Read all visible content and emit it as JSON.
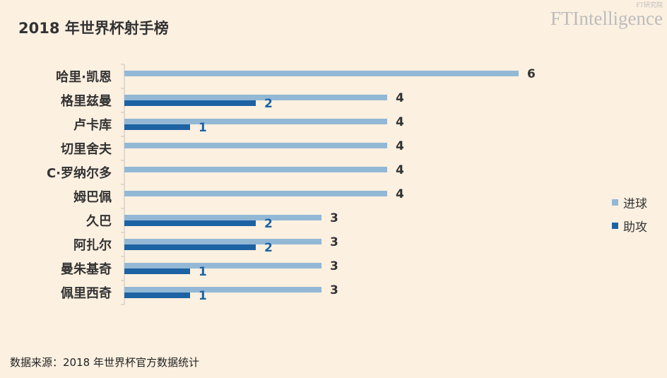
{
  "title": "2018 年世界杯射手榜",
  "brand": {
    "main": "FTIntelligence",
    "sub": "FT研究院"
  },
  "source": "数据来源：2018 年世界杯官方数据统计",
  "colors": {
    "goals": "#93b8d6",
    "assists": "#1d63a4",
    "label_goals": "#333333",
    "label_assists": "#1d63a4"
  },
  "chart_data": {
    "type": "bar",
    "orientation": "horizontal",
    "categories": [
      "哈里·凯恩",
      "格里兹曼",
      "卢卡库",
      "切里舍夫",
      "C·罗纳尔多",
      "姆巴佩",
      "久巴",
      "阿扎尔",
      "曼朱基奇",
      "佩里西奇"
    ],
    "series": [
      {
        "name": "进球",
        "values": [
          6,
          4,
          4,
          4,
          4,
          4,
          3,
          3,
          3,
          3
        ]
      },
      {
        "name": "助攻",
        "values": [
          null,
          2,
          1,
          null,
          null,
          null,
          2,
          2,
          1,
          1
        ]
      }
    ],
    "xlim": [
      0,
      6
    ],
    "grid": false,
    "legend": "right"
  }
}
